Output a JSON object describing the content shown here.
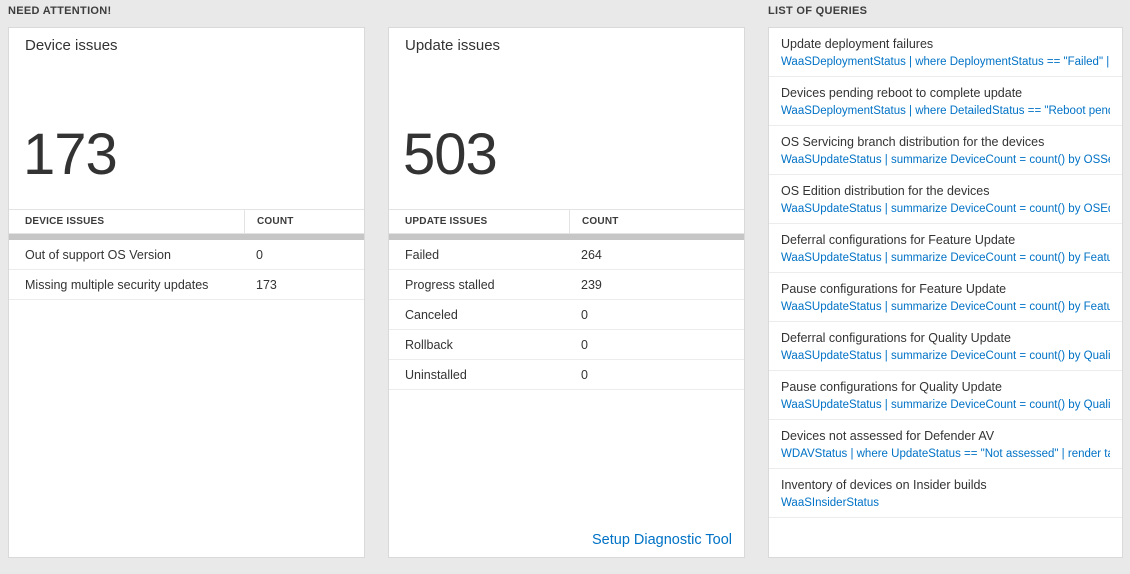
{
  "page": {
    "background_color": "#e9e9e9",
    "accent_color": "#0072c6"
  },
  "need_attention": {
    "section_title": "NEED ATTENTION!",
    "device_card": {
      "title": "Device issues",
      "count": "173",
      "headers": [
        "DEVICE ISSUES",
        "COUNT"
      ],
      "rows": [
        {
          "label": "Out of support OS Version",
          "count": "0"
        },
        {
          "label": "Missing multiple security updates",
          "count": "173"
        }
      ]
    },
    "update_card": {
      "title": "Update issues",
      "count": "503",
      "headers": [
        "UPDATE ISSUES",
        "COUNT"
      ],
      "rows": [
        {
          "label": "Failed",
          "count": "264"
        },
        {
          "label": "Progress stalled",
          "count": "239"
        },
        {
          "label": "Canceled",
          "count": "0"
        },
        {
          "label": "Rollback",
          "count": "0"
        },
        {
          "label": "Uninstalled",
          "count": "0"
        }
      ],
      "footer_link": "Setup Diagnostic Tool"
    }
  },
  "queries": {
    "section_title": "LIST OF QUERIES",
    "items": [
      {
        "title": "Update deployment failures",
        "query": "WaaSDeploymentStatus | where DeploymentStatus == \"Failed\" |..."
      },
      {
        "title": "Devices pending reboot to complete update",
        "query": "WaaSDeploymentStatus | where DetailedStatus == \"Reboot pend..."
      },
      {
        "title": "OS Servicing branch distribution for the devices",
        "query": "WaaSUpdateStatus | summarize DeviceCount = count() by OSSer..."
      },
      {
        "title": "OS Edition distribution for the devices",
        "query": "WaaSUpdateStatus | summarize DeviceCount = count() by OSEdit..."
      },
      {
        "title": "Deferral configurations for Feature Update",
        "query": "WaaSUpdateStatus | summarize DeviceCount = count() by Featur..."
      },
      {
        "title": "Pause configurations for Feature Update",
        "query": "WaaSUpdateStatus | summarize DeviceCount = count() by Featur..."
      },
      {
        "title": "Deferral configurations for Quality Update",
        "query": "WaaSUpdateStatus | summarize DeviceCount = count() by Qualit..."
      },
      {
        "title": "Pause configurations for Quality Update",
        "query": "WaaSUpdateStatus | summarize DeviceCount = count() by Qualit..."
      },
      {
        "title": "Devices not assessed for Defender AV",
        "query": "WDAVStatus | where UpdateStatus == \"Not assessed\" | render ta..."
      },
      {
        "title": "Inventory of devices on Insider builds",
        "query": "WaaSInsiderStatus"
      }
    ]
  }
}
